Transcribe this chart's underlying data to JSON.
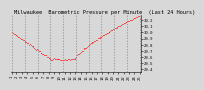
{
  "title": "Milwaukee  Barometric Pressure per Minute  (Last 24 Hours)",
  "background_color": "#d8d8d8",
  "plot_bg_color": "#d8d8d8",
  "grid_color": "#888888",
  "line_color": "#ff0000",
  "ylim": [
    29.35,
    30.28
  ],
  "yticks": [
    29.4,
    29.5,
    29.6,
    29.7,
    29.8,
    29.9,
    30.0,
    30.1,
    30.2
  ],
  "ytick_labels": [
    "29.4",
    "29.5",
    "29.6",
    "29.7",
    "29.8",
    "29.9",
    "30.0",
    "30.1",
    "30.2"
  ],
  "num_points": 144,
  "num_vgrid": 11,
  "title_fontsize": 3.8,
  "tick_fontsize": 2.8
}
